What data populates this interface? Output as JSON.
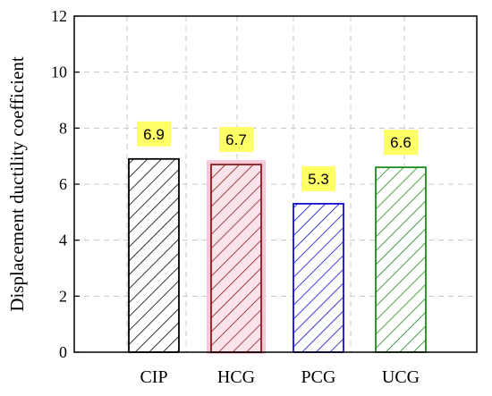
{
  "chart_data": {
    "type": "bar",
    "title": "",
    "xlabel": "",
    "ylabel": "Displacement ductility coefficient",
    "ylim": [
      0,
      12
    ],
    "yticks": [
      0,
      2,
      4,
      6,
      8,
      10,
      12
    ],
    "grid": true,
    "legend": "none",
    "categories": [
      "CIP",
      "HCG",
      "PCG",
      "UCG"
    ],
    "values": [
      6.9,
      6.7,
      5.3,
      6.6
    ],
    "data_labels": [
      "6.9",
      "6.7",
      "5.3",
      "6.6"
    ],
    "bar_colors": [
      "#000000",
      "#8b1a1a",
      "#1010cc",
      "#1a8a1a"
    ],
    "bar_fills": [
      "#ffffff",
      "#fbe3ec",
      "#ffffff",
      "#ffffff"
    ],
    "label_background": "#ffff66"
  }
}
